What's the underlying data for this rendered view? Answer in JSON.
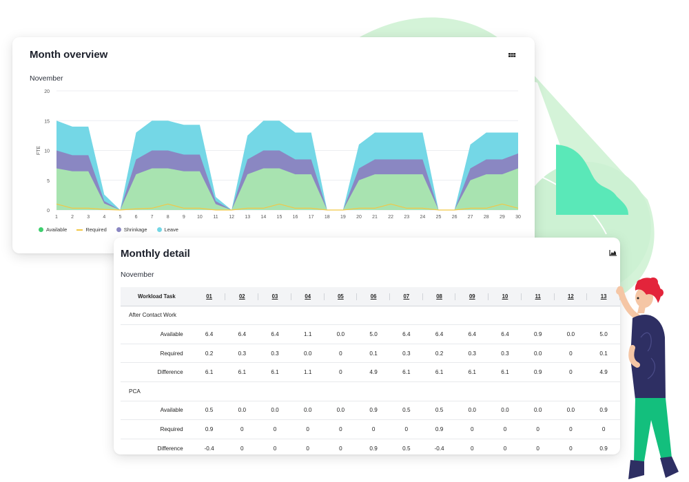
{
  "colors": {
    "available": "#a8e3b0",
    "available_legend": "#3ecf6e",
    "required": "#f2c744",
    "shrinkage": "#8a87c2",
    "leave": "#74d7e6",
    "decor_green": "#c9f0cf",
    "decor_mint": "#5ae8b8"
  },
  "overview": {
    "title": "Month overview",
    "subtitle": "November",
    "icon": "grid-icon",
    "legend": [
      {
        "label": "Available",
        "color": "#3ecf6e"
      },
      {
        "label": "Required",
        "color": "#f2c744"
      },
      {
        "label": "Shrinkage",
        "color": "#8a87c2"
      },
      {
        "label": "Leave",
        "color": "#74d7e6"
      }
    ]
  },
  "chart_data": {
    "type": "area",
    "title": "",
    "xlabel": "",
    "ylabel": "FTE",
    "ylim": [
      0,
      20
    ],
    "yticks": [
      0,
      5,
      10,
      15,
      20
    ],
    "grid": true,
    "legend_position": "bottom-left",
    "x": [
      1,
      2,
      3,
      4,
      5,
      6,
      7,
      8,
      9,
      10,
      11,
      12,
      13,
      14,
      15,
      16,
      17,
      18,
      19,
      20,
      21,
      22,
      23,
      24,
      25,
      26,
      27,
      28,
      29,
      30
    ],
    "stacked_series": [
      {
        "name": "Available",
        "values": [
          7,
          6.5,
          6.5,
          1.1,
          0,
          6,
          7,
          7,
          6.5,
          6.5,
          1,
          0,
          6,
          7,
          7,
          6,
          6,
          0,
          0,
          5,
          6,
          6,
          6,
          6,
          0,
          0,
          5,
          6,
          6,
          7
        ]
      },
      {
        "name": "Shrinkage",
        "values": [
          3,
          2.7,
          2.7,
          0.4,
          0,
          2.5,
          3,
          3,
          2.8,
          2.8,
          0.5,
          0,
          2.5,
          3,
          3,
          2.5,
          2.5,
          0,
          0,
          2,
          2.5,
          2.5,
          2.5,
          2.5,
          0,
          0,
          2,
          2.5,
          2.5,
          2.5
        ]
      },
      {
        "name": "Leave",
        "values": [
          5,
          4.8,
          4.8,
          1.1,
          0,
          4.5,
          5,
          5,
          5,
          5,
          0.7,
          0,
          4,
          5,
          5,
          4.5,
          4.5,
          0,
          0,
          4,
          4.5,
          4.5,
          4.5,
          4.5,
          0,
          0,
          4,
          4.5,
          4.5,
          3.5
        ]
      }
    ],
    "line_series": [
      {
        "name": "Required",
        "values": [
          1,
          0.3,
          0.3,
          0.1,
          0,
          0.2,
          0.3,
          1,
          0.3,
          0.3,
          0,
          0,
          0.3,
          0.3,
          1,
          0.3,
          0.3,
          0,
          0,
          0.3,
          0.3,
          1,
          0.3,
          0.3,
          0,
          0,
          0.3,
          0.3,
          1,
          0.3
        ]
      }
    ]
  },
  "detail": {
    "title": "Monthly detail",
    "subtitle": "November",
    "icon": "area-chart-icon",
    "header_first": "Workload Task",
    "columns": [
      "01",
      "02",
      "03",
      "04",
      "05",
      "06",
      "07",
      "08",
      "09",
      "10",
      "11",
      "12",
      "13"
    ],
    "rows": [
      {
        "type": "group",
        "label": "After Contact Work"
      },
      {
        "type": "row",
        "label": "Available",
        "values": [
          "6.4",
          "6.4",
          "6.4",
          "1.1",
          "0.0",
          "5.0",
          "6.4",
          "6.4",
          "6.4",
          "6.4",
          "0.9",
          "0.0",
          "5.0"
        ]
      },
      {
        "type": "row",
        "label": "Required",
        "values": [
          "0.2",
          "0.3",
          "0.3",
          "0.0",
          "0",
          "0.1",
          "0.3",
          "0.2",
          "0.3",
          "0.3",
          "0.0",
          "0",
          "0.1"
        ]
      },
      {
        "type": "row",
        "label": "Difference",
        "values": [
          "6.1",
          "6.1",
          "6.1",
          "1.1",
          "0",
          "4.9",
          "6.1",
          "6.1",
          "6.1",
          "6.1",
          "0.9",
          "0",
          "4.9"
        ]
      },
      {
        "type": "group",
        "label": "PCA"
      },
      {
        "type": "row",
        "label": "Available",
        "values": [
          "0.5",
          "0.0",
          "0.0",
          "0.0",
          "0.0",
          "0.9",
          "0.5",
          "0.5",
          "0.0",
          "0.0",
          "0.0",
          "0.0",
          "0.9"
        ]
      },
      {
        "type": "row",
        "label": "Required",
        "values": [
          "0.9",
          "0",
          "0",
          "0",
          "0",
          "0",
          "0",
          "0.9",
          "0",
          "0",
          "0",
          "0",
          "0"
        ]
      },
      {
        "type": "row",
        "label": "Difference",
        "values": [
          "-0.4",
          "0",
          "0",
          "0",
          "0",
          "0.9",
          "0.5",
          "-0.4",
          "0",
          "0",
          "0",
          "0",
          "0.9"
        ]
      }
    ]
  }
}
